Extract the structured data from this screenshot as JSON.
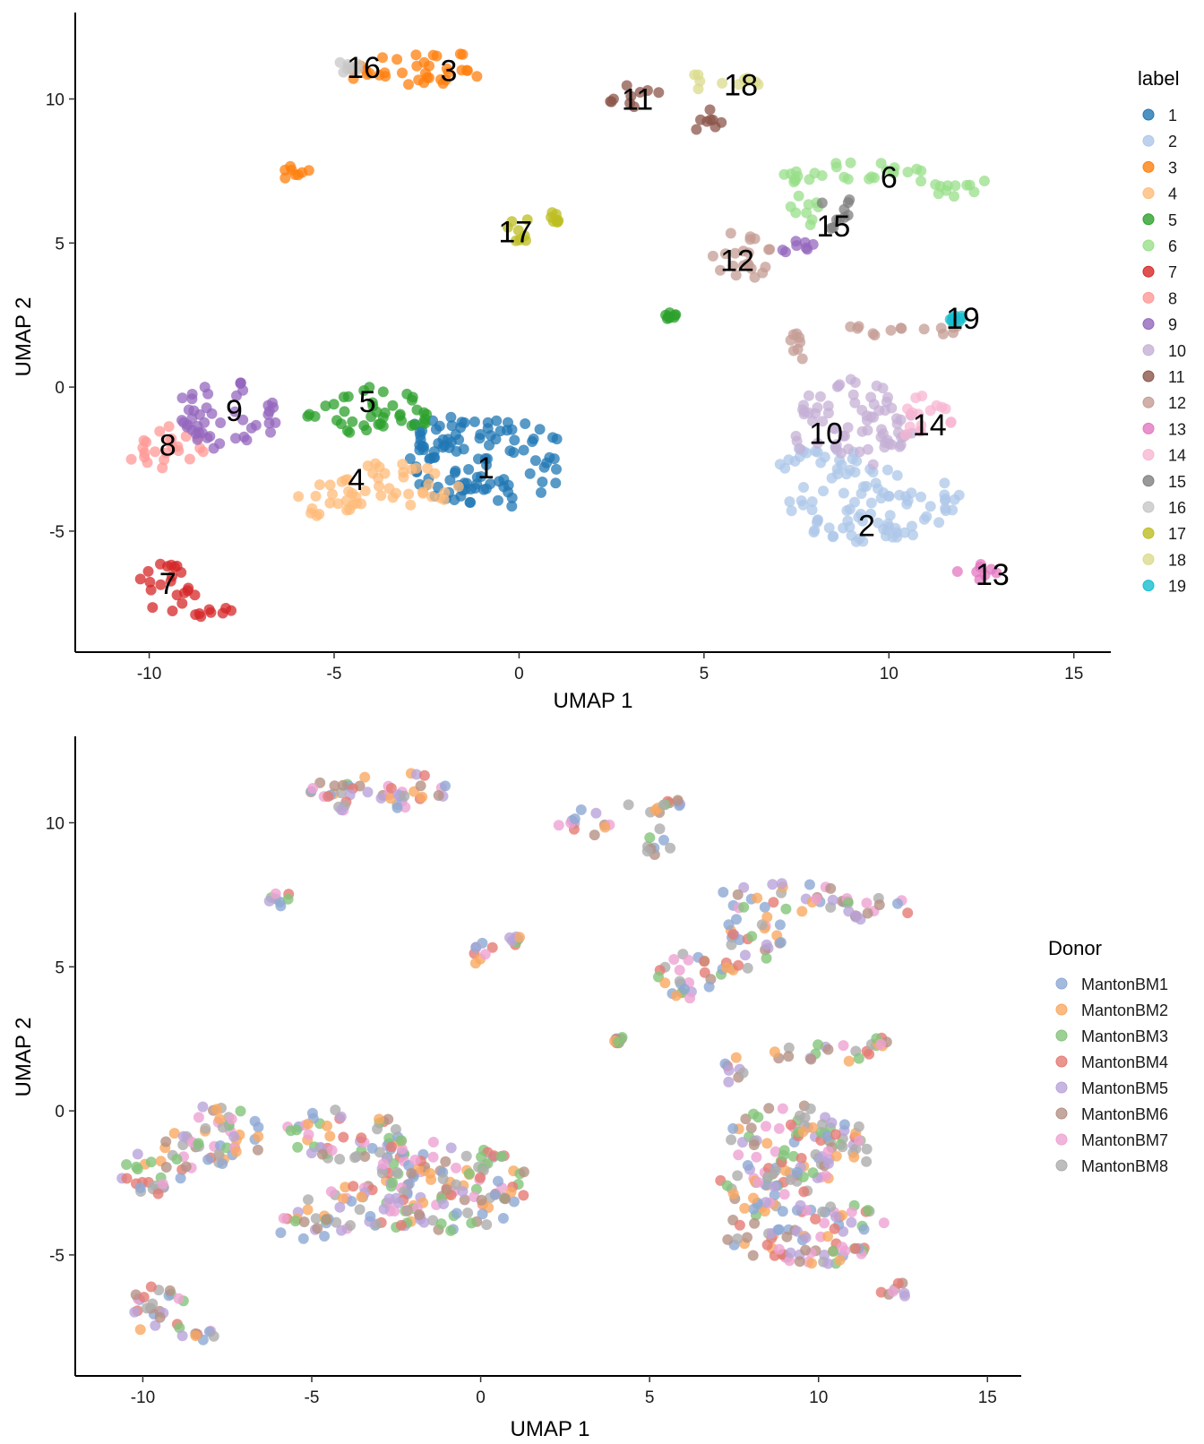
{
  "chart_data": [
    {
      "type": "scatter",
      "xlabel": "UMAP 1",
      "ylabel": "UMAP 2",
      "xlim": [
        -12,
        16
      ],
      "ylim": [
        -9.2,
        13
      ],
      "xticks": [
        -10,
        -5,
        0,
        5,
        10,
        15
      ],
      "yticks": [
        -5,
        0,
        5,
        10
      ],
      "xtick_labels": [
        "-10",
        "-5",
        "0",
        "5",
        "10",
        "15"
      ],
      "ytick_labels": [
        "-5",
        "0",
        "5",
        "10"
      ],
      "legend_title": "label",
      "legend_position": "right",
      "series": [
        {
          "name": "1",
          "color": "#1F77B4",
          "label_at": [
            -0.9,
            -2.8
          ],
          "regions": [
            [
              -0.8,
              -2.6,
              2.2,
              1.6
            ],
            [
              -2.2,
              -1.8,
              0.8,
              0.9
            ]
          ]
        },
        {
          "name": "2",
          "color": "#AEC7E8",
          "label_at": [
            9.4,
            -4.8
          ],
          "regions": [
            [
              9.6,
              -4.1,
              2.4,
              1.3
            ],
            [
              8.4,
              -2.6,
              1.4,
              0.6
            ]
          ]
        },
        {
          "name": "3",
          "color": "#FF7F0E",
          "label_at": [
            -1.9,
            11.0
          ],
          "regions": [
            [
              -2.5,
              11.1,
              1.6,
              0.65
            ],
            [
              -4.0,
              10.9,
              0.6,
              0.5
            ],
            [
              -6.0,
              7.4,
              0.4,
              0.3
            ]
          ]
        },
        {
          "name": "4",
          "color": "#FFBB78",
          "label_at": [
            -4.4,
            -3.2
          ],
          "regions": [
            [
              -3.5,
              -3.4,
              1.9,
              0.8
            ],
            [
              -5.2,
              -4.0,
              0.9,
              0.5
            ]
          ]
        },
        {
          "name": "5",
          "color": "#2CA02C",
          "label_at": [
            -4.1,
            -0.5
          ],
          "regions": [
            [
              -4.0,
              -0.8,
              1.8,
              0.9
            ],
            [
              4.1,
              2.4,
              0.2,
              0.2
            ]
          ]
        },
        {
          "name": "6",
          "color": "#98DF8A",
          "label_at": [
            10.0,
            7.3
          ],
          "regions": [
            [
              9.0,
              7.4,
              2.0,
              0.5
            ],
            [
              11.8,
              7.0,
              1.2,
              0.4
            ],
            [
              7.7,
              6.0,
              0.5,
              0.7
            ]
          ]
        },
        {
          "name": "7",
          "color": "#D62728",
          "label_at": [
            -9.5,
            -6.8
          ],
          "regions": [
            [
              -9.5,
              -6.9,
              0.9,
              0.9
            ],
            [
              -8.3,
              -7.8,
              0.6,
              0.2
            ]
          ]
        },
        {
          "name": "8",
          "color": "#FF9896",
          "label_at": [
            -9.5,
            -2.0
          ],
          "regions": [
            [
              -9.6,
              -2.1,
              1.1,
              0.8
            ]
          ]
        },
        {
          "name": "9",
          "color": "#9467BD",
          "label_at": [
            -7.7,
            -0.8
          ],
          "regions": [
            [
              -7.9,
              -1.0,
              1.5,
              1.2
            ],
            [
              7.5,
              4.9,
              0.5,
              0.3
            ]
          ]
        },
        {
          "name": "10",
          "color": "#C5B0D5",
          "label_at": [
            8.3,
            -1.6
          ],
          "regions": [
            [
              9.0,
              -1.3,
              1.7,
              1.6
            ]
          ]
        },
        {
          "name": "11",
          "color": "#8C564B",
          "label_at": [
            3.2,
            10.0
          ],
          "regions": [
            [
              3.1,
              10.0,
              0.8,
              0.5
            ],
            [
              5.2,
              9.3,
              0.6,
              0.5
            ]
          ]
        },
        {
          "name": "12",
          "color": "#C49C94",
          "label_at": [
            5.9,
            4.4
          ],
          "regions": [
            [
              6.0,
              4.6,
              0.9,
              0.9
            ],
            [
              10.2,
              2.0,
              1.8,
              0.3
            ],
            [
              7.5,
              1.4,
              0.3,
              0.5
            ]
          ]
        },
        {
          "name": "13",
          "color": "#E377C2",
          "label_at": [
            12.8,
            -6.5
          ],
          "regions": [
            [
              12.4,
              -6.3,
              0.6,
              0.4
            ]
          ]
        },
        {
          "name": "14",
          "color": "#F7B6D2",
          "label_at": [
            11.1,
            -1.3
          ],
          "regions": [
            [
              11.0,
              -1.1,
              0.8,
              0.8
            ]
          ]
        },
        {
          "name": "15",
          "color": "#7F7F7F",
          "label_at": [
            8.5,
            5.6
          ],
          "regions": [
            [
              8.6,
              6.0,
              0.5,
              0.8
            ]
          ]
        },
        {
          "name": "16",
          "color": "#C7C7C7",
          "label_at": [
            -4.2,
            11.1
          ],
          "regions": [
            [
              -4.6,
              11.2,
              0.6,
              0.35
            ]
          ]
        },
        {
          "name": "17",
          "color": "#BCBD22",
          "label_at": [
            -0.1,
            5.4
          ],
          "regions": [
            [
              0.0,
              5.5,
              0.4,
              0.5
            ],
            [
              1.0,
              5.9,
              0.2,
              0.2
            ]
          ]
        },
        {
          "name": "18",
          "color": "#DBDB8D",
          "label_at": [
            6.0,
            10.5
          ],
          "regions": [
            [
              5.5,
              10.6,
              1.2,
              0.35
            ]
          ]
        },
        {
          "name": "19",
          "color": "#17BECF",
          "label_at": [
            12.0,
            2.4
          ],
          "regions": [
            [
              11.8,
              2.4,
              0.3,
              0.15
            ]
          ]
        }
      ],
      "cluster_labels": [
        "1",
        "2",
        "3",
        "4",
        "5",
        "6",
        "7",
        "8",
        "9",
        "10",
        "11",
        "12",
        "13",
        "14",
        "15",
        "16",
        "17",
        "18",
        "19"
      ]
    },
    {
      "type": "scatter",
      "xlabel": "UMAP 1",
      "ylabel": "UMAP 2",
      "xlim": [
        -12,
        16
      ],
      "ylim": [
        -9.2,
        13
      ],
      "xticks": [
        -10,
        -5,
        0,
        5,
        10,
        15
      ],
      "yticks": [
        -5,
        0,
        5,
        10
      ],
      "xtick_labels": [
        "-10",
        "-5",
        "0",
        "5",
        "10",
        "15"
      ],
      "ytick_labels": [
        "-5",
        "0",
        "5",
        "10"
      ],
      "legend_title": "Donor",
      "legend_position": "right",
      "series": [
        {
          "name": "MantonBM1",
          "color": "#8DA9D4"
        },
        {
          "name": "MantonBM2",
          "color": "#F9A962"
        },
        {
          "name": "MantonBM3",
          "color": "#83C47A"
        },
        {
          "name": "MantonBM4",
          "color": "#E57B73"
        },
        {
          "name": "MantonBM5",
          "color": "#B9A4D9"
        },
        {
          "name": "MantonBM6",
          "color": "#B59184"
        },
        {
          "name": "MantonBM7",
          "color": "#EEA3D3"
        },
        {
          "name": "MantonBM8",
          "color": "#ACACAC"
        }
      ]
    }
  ]
}
